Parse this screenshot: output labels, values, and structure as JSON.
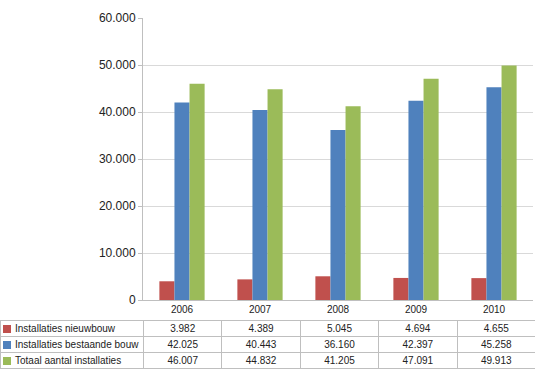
{
  "chart_data": {
    "type": "bar",
    "categories": [
      "2006",
      "2007",
      "2008",
      "2009",
      "2010"
    ],
    "series": [
      {
        "name": "Installaties nieuwbouw",
        "color": "#c0504d",
        "values": [
          3982,
          4389,
          5045,
          4694,
          4655
        ],
        "value_labels": [
          "3.982",
          "4.389",
          "5.045",
          "4.694",
          "4.655"
        ]
      },
      {
        "name": "Installaties bestaande bouw",
        "color": "#4f81bd",
        "values": [
          42025,
          40443,
          36160,
          42397,
          45258
        ],
        "value_labels": [
          "42.025",
          "40.443",
          "36.160",
          "42.397",
          "45.258"
        ]
      },
      {
        "name": "Totaal aantal installaties",
        "color": "#9bbb59",
        "values": [
          46007,
          44832,
          41205,
          47091,
          49913
        ],
        "value_labels": [
          "46.007",
          "44.832",
          "41.205",
          "47.091",
          "49.913"
        ]
      }
    ],
    "ylim": [
      0,
      60000
    ],
    "yticks": [
      0,
      {
        "value": 10000,
        "label": "10.000"
      },
      {
        "value": 20000,
        "label": "20.000"
      },
      {
        "value": 30000,
        "label": "30.000"
      },
      {
        "value": 40000,
        "label": "40.000"
      },
      {
        "value": 50000,
        "label": "50.000"
      },
      {
        "value": 60000,
        "label": "60.000"
      }
    ],
    "grid": true
  }
}
